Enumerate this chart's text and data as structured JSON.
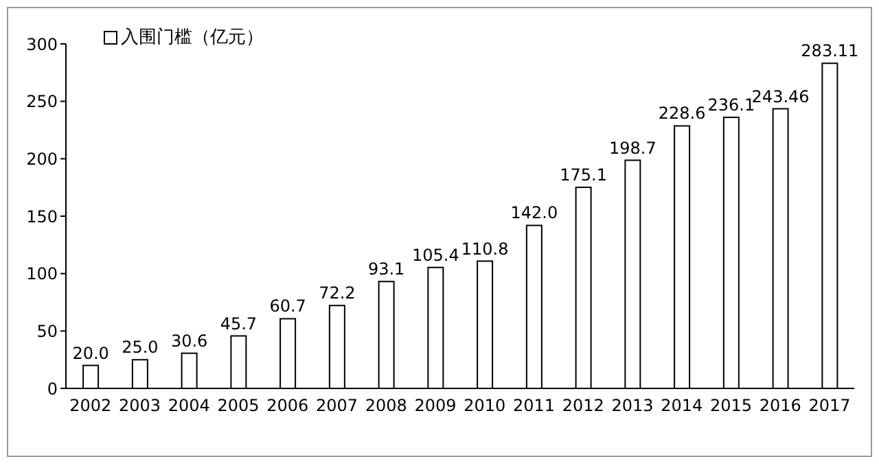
{
  "chart_data": {
    "type": "bar",
    "categories": [
      "2002",
      "2003",
      "2004",
      "2005",
      "2006",
      "2007",
      "2008",
      "2009",
      "2010",
      "2011",
      "2012",
      "2013",
      "2014",
      "2015",
      "2016",
      "2017"
    ],
    "series": [
      {
        "name": "入围门槛（亿元）",
        "color": "#ffffff",
        "values": [
          20.0,
          25.0,
          30.6,
          45.7,
          60.7,
          72.2,
          93.1,
          105.4,
          110.8,
          142.0,
          175.1,
          198.7,
          228.6,
          236.1,
          243.46,
          283.11
        ],
        "value_labels": [
          "20.0",
          "25.0",
          "30.6",
          "45.7",
          "60.7",
          "72.2",
          "93.1",
          "105.4",
          "110.8",
          "142.0",
          "175.1",
          "198.7",
          "228.6",
          "236.1",
          "243.46",
          "283.11"
        ]
      }
    ],
    "ylim": [
      0,
      300
    ],
    "yticks": [
      0,
      50,
      100,
      150,
      200,
      250,
      300
    ],
    "grid": false,
    "legend": "top left"
  }
}
